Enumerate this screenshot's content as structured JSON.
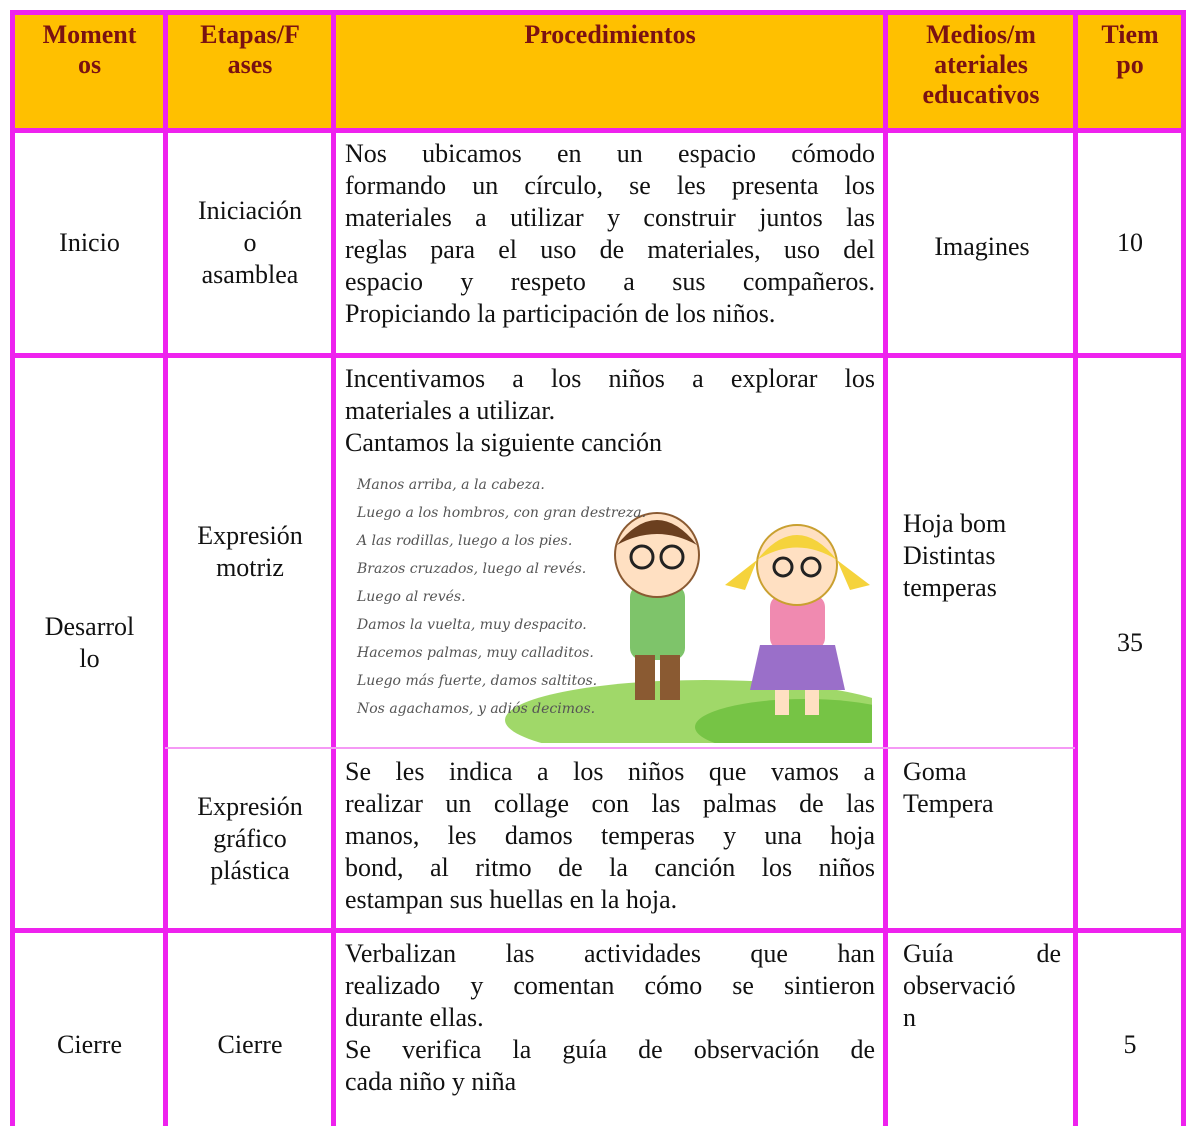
{
  "header": [
    [
      "Moment",
      "os"
    ],
    [
      "Etapas/F",
      "ases"
    ],
    [
      "Procedimientos"
    ],
    [
      "Medios/m",
      "ateriales",
      "educativos"
    ],
    [
      "Tiem",
      "po"
    ]
  ],
  "sections": [
    {
      "moment": [
        "Inicio"
      ],
      "time": "10",
      "stages": [
        {
          "stage": [
            "Iniciación",
            "o",
            "asamblea"
          ],
          "procedure": [
            [
              "Nos ubicamos en un espacio cómodo",
              "formando un círculo, se les presenta los",
              "materiales a utilizar y construir juntos las",
              "reglas para el uso de materiales, uso del",
              "espacio y respeto a sus compañeros.",
              "Propiciando la participación de los niños."
            ]
          ],
          "materials": [
            [
              "Imagines"
            ]
          ]
        }
      ]
    },
    {
      "moment": [
        "Desarrol",
        "lo"
      ],
      "time": "35",
      "stages": [
        {
          "stage": [
            "Expresión",
            "motriz"
          ],
          "procedure": [
            [
              "Incentivamos a los niños a explorar los",
              "materiales a utilizar."
            ],
            [
              "Cantamos la siguiente canción"
            ]
          ],
          "song": [
            "Manos arriba, a la cabeza.",
            "Luego a los hombros, con gran destreza.",
            "A las rodillas, luego a los pies.",
            "Brazos cruzados, luego al revés.",
            "Luego al revés.",
            "Damos la vuelta, muy despacito.",
            "Hacemos palmas, muy calladitos.",
            "Luego más fuerte, damos saltitos.",
            "Nos agachamos, y adiós decimos."
          ],
          "materials": [
            [
              "Hoja bom"
            ],
            [
              "Distintas"
            ],
            [
              "temperas"
            ]
          ]
        },
        {
          "stage": [
            "Expresión",
            "gráfico",
            "plástica"
          ],
          "procedure": [
            [
              "Se les indica a los niños que vamos a",
              "realizar un collage con las palmas de las",
              "manos, les damos temperas y una hoja",
              "bond, al ritmo de la canción los niños",
              "estampan sus huellas en la hoja."
            ]
          ],
          "materials": [
            [
              "Goma"
            ],
            [
              "Tempera"
            ]
          ]
        }
      ]
    },
    {
      "moment": [
        "Cierre"
      ],
      "time": "5",
      "stages": [
        {
          "stage": [
            "Cierre"
          ],
          "procedure": [
            [
              "Verbalizan las actividades que han",
              "realizado y comentan cómo se sintieron",
              "durante ellas."
            ],
            [
              "Se verifica la guía de observación de",
              "cada niño y niña"
            ]
          ],
          "materials": [
            [
              "Guía de",
              "observació",
              "n"
            ]
          ]
        }
      ]
    }
  ]
}
